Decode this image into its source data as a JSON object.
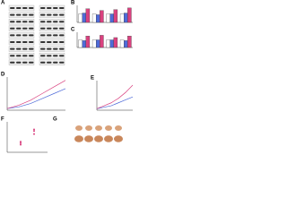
{
  "panels": [
    {
      "label": "A"
    },
    {
      "label": "B",
      "chart": {
        "type": "bar",
        "ylim": [
          0,
          2
        ],
        "series": [
          {
            "color": "#ffffff",
            "values": [
              1,
              1,
              1,
              1
            ]
          },
          {
            "color": "#4f6bd8",
            "values": [
              1.1,
              0.9,
              1,
              1.1
            ]
          },
          {
            "color": "#d9417f",
            "values": [
              1.6,
              1.4,
              1.5,
              1.7
            ]
          }
        ]
      }
    },
    {
      "label": "C",
      "chart": {
        "type": "bar",
        "ylim": [
          0,
          2
        ],
        "series": [
          {
            "color": "#ffffff",
            "values": [
              1,
              1,
              1,
              1
            ]
          },
          {
            "color": "#4f6bd8",
            "values": [
              0.9,
              1,
              1,
              0.9
            ]
          },
          {
            "color": "#d9417f",
            "values": [
              1.5,
              1.6,
              1.3,
              1.5
            ]
          }
        ]
      }
    },
    {
      "label": "D",
      "chart": {
        "type": "line",
        "x": [
          0,
          1,
          2,
          3,
          4,
          5
        ],
        "ylim": [
          0,
          2
        ],
        "series": [
          {
            "color": "#4f6bd8",
            "values": [
              0.1,
              0.2,
              0.4,
              0.7,
              1,
              1.3
            ]
          },
          {
            "color": "#d9417f",
            "values": [
              0.1,
              0.3,
              0.6,
              1,
              1.4,
              1.8
            ]
          }
        ]
      }
    },
    {
      "label": "E",
      "chart": {
        "type": "line",
        "x": [
          0,
          1,
          2,
          3,
          4,
          5
        ],
        "ylim": [
          0,
          2
        ],
        "series": [
          {
            "color": "#4f6bd8",
            "values": [
              0.1,
              0.2,
              0.3,
              0.5,
              0.7,
              0.9
            ]
          },
          {
            "color": "#d9417f",
            "values": [
              0.1,
              0.3,
              0.5,
              0.8,
              1.2,
              1.7
            ]
          }
        ]
      }
    },
    {
      "label": "F",
      "chart": {
        "type": "scatter",
        "x": [
          1,
          1,
          1,
          2,
          2,
          2
        ],
        "xlim": [
          0,
          3
        ],
        "ylim": [
          0,
          2
        ],
        "series": [
          {
            "color": "#d9417f",
            "values": [
              0.5,
              0.6,
              0.7,
              1.2,
              1.4,
              1.5
            ]
          }
        ]
      }
    },
    {
      "label": "G"
    }
  ]
}
